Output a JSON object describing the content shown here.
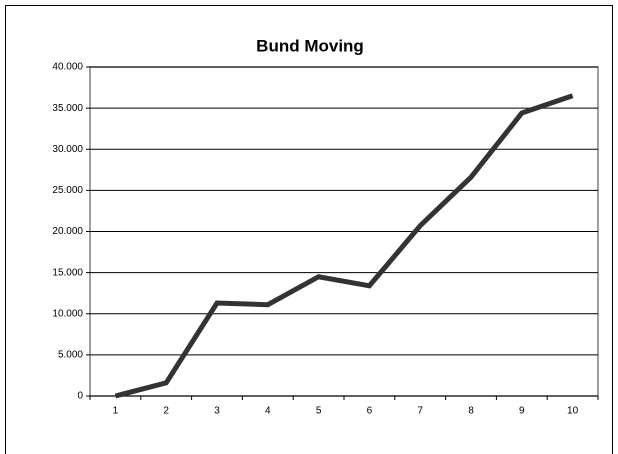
{
  "chart_data": {
    "type": "line",
    "title": "Bund Moving",
    "categories": [
      "1",
      "2",
      "3",
      "4",
      "5",
      "6",
      "7",
      "8",
      "9",
      "10"
    ],
    "values": [
      0,
      1.6,
      11.3,
      11.1,
      14.5,
      13.4,
      20.7,
      26.6,
      34.4,
      36.5
    ],
    "color": "#333333",
    "ylim": [
      0,
      40
    ],
    "yticks": [
      0,
      {
        "value": 5,
        "label": "5.000"
      },
      {
        "value": 10,
        "label": "10.000"
      },
      {
        "value": 15,
        "label": "15.000"
      },
      {
        "value": 20,
        "label": "20.000"
      },
      {
        "value": 25,
        "label": "25.000"
      },
      {
        "value": 30,
        "label": "30.000"
      },
      {
        "value": 35,
        "label": "35.000"
      },
      {
        "value": 40,
        "label": "40.000"
      }
    ],
    "grid": true
  }
}
